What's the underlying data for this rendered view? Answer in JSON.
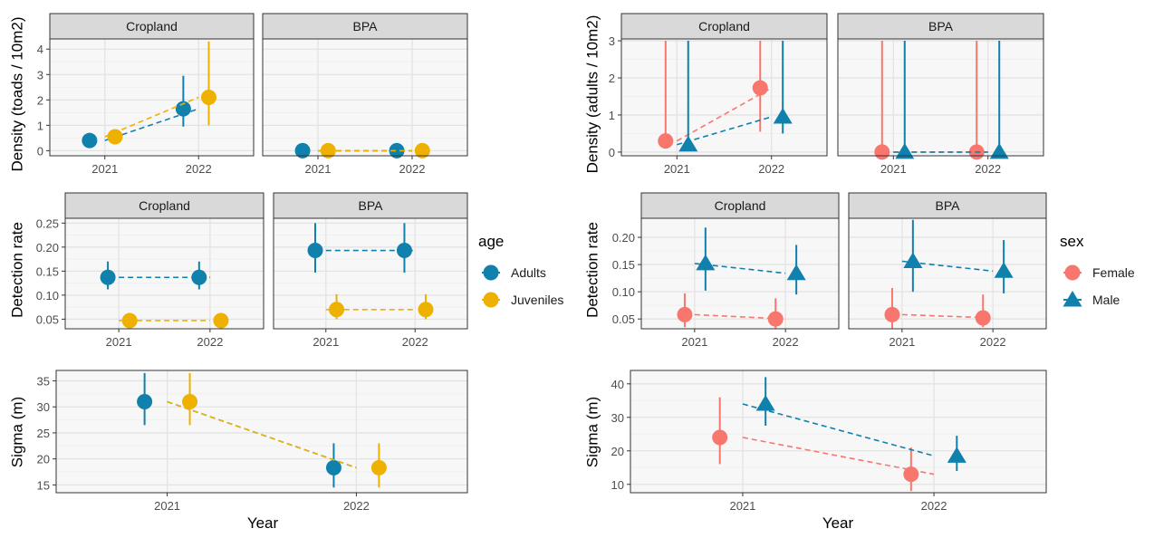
{
  "colors": {
    "adults": "#1080AD",
    "juveniles": "#EFB100",
    "female": "#F8766D",
    "male": "#1080AD",
    "panel_bg": "#F7F7F7",
    "strip_bg": "#D9D9D9",
    "grid_major": "#E3E3E3",
    "grid_minor": "#EFEFEF"
  },
  "chart_data": [
    {
      "id": "age_density",
      "type": "scatter",
      "group": "age",
      "ylabel": "Density (toads / 10m2)",
      "ylim": [
        -0.2,
        4.4
      ],
      "yticks": [
        0,
        1,
        2,
        3,
        4
      ],
      "yticklabels": [
        "0",
        "1",
        "2",
        "3",
        "4"
      ],
      "xticks": [
        "2021",
        "2022"
      ],
      "facets": [
        {
          "label": "Cropland",
          "series": [
            {
              "name": "Adults",
              "shape": "circle",
              "points": [
                {
                  "x": "2021",
                  "y": 0.4,
                  "lo": 0.38,
                  "hi": 0.42
                },
                {
                  "x": "2022",
                  "y": 1.65,
                  "lo": 0.95,
                  "hi": 2.95
                }
              ]
            },
            {
              "name": "Juveniles",
              "shape": "circle",
              "points": [
                {
                  "x": "2021",
                  "y": 0.55,
                  "lo": 0.4,
                  "hi": 0.75
                },
                {
                  "x": "2022",
                  "y": 2.1,
                  "lo": 1.0,
                  "hi": 4.3
                }
              ]
            }
          ]
        },
        {
          "label": "BPA",
          "series": [
            {
              "name": "Adults",
              "shape": "circle",
              "points": [
                {
                  "x": "2021",
                  "y": 0,
                  "lo": 0,
                  "hi": 0
                },
                {
                  "x": "2022",
                  "y": 0,
                  "lo": 0,
                  "hi": 0
                }
              ]
            },
            {
              "name": "Juveniles",
              "shape": "circle",
              "points": [
                {
                  "x": "2021",
                  "y": 0,
                  "lo": 0,
                  "hi": 0
                },
                {
                  "x": "2022",
                  "y": 0,
                  "lo": 0,
                  "hi": 0
                }
              ]
            }
          ]
        }
      ]
    },
    {
      "id": "age_detection",
      "type": "scatter",
      "group": "age",
      "ylabel": "Detection rate",
      "ylim": [
        0.03,
        0.26
      ],
      "yticks": [
        0.05,
        0.1,
        0.15,
        0.2,
        0.25
      ],
      "yticklabels": [
        "0.05",
        "0.10",
        "0.15",
        "0.20",
        "0.25"
      ],
      "xticks": [
        "2021",
        "2022"
      ],
      "facets": [
        {
          "label": "Cropland",
          "series": [
            {
              "name": "Adults",
              "shape": "circle",
              "points": [
                {
                  "x": "2021",
                  "y": 0.137,
                  "lo": 0.112,
                  "hi": 0.17
                },
                {
                  "x": "2022",
                  "y": 0.137,
                  "lo": 0.112,
                  "hi": 0.17
                }
              ]
            },
            {
              "name": "Juveniles",
              "shape": "circle",
              "points": [
                {
                  "x": "2021",
                  "y": 0.047,
                  "lo": 0.036,
                  "hi": 0.063
                },
                {
                  "x": "2022",
                  "y": 0.047,
                  "lo": 0.036,
                  "hi": 0.063
                }
              ]
            }
          ]
        },
        {
          "label": "BPA",
          "series": [
            {
              "name": "Adults",
              "shape": "circle",
              "points": [
                {
                  "x": "2021",
                  "y": 0.193,
                  "lo": 0.147,
                  "hi": 0.25
                },
                {
                  "x": "2022",
                  "y": 0.193,
                  "lo": 0.147,
                  "hi": 0.25
                }
              ]
            },
            {
              "name": "Juveniles",
              "shape": "circle",
              "points": [
                {
                  "x": "2021",
                  "y": 0.07,
                  "lo": 0.05,
                  "hi": 0.102
                },
                {
                  "x": "2022",
                  "y": 0.07,
                  "lo": 0.05,
                  "hi": 0.102
                }
              ]
            }
          ]
        }
      ]
    },
    {
      "id": "age_sigma",
      "type": "scatter",
      "group": "age",
      "ylabel": "Sigma (m)",
      "xlabel": "Year",
      "ylim": [
        13.5,
        37
      ],
      "yticks": [
        15,
        20,
        25,
        30,
        35
      ],
      "yticklabels": [
        "15",
        "20",
        "25",
        "30",
        "35"
      ],
      "xticks": [
        "2021",
        "2022"
      ],
      "facets": [
        {
          "label": "",
          "series": [
            {
              "name": "Adults",
              "shape": "circle",
              "points": [
                {
                  "x": "2021",
                  "y": 31,
                  "lo": 26.5,
                  "hi": 36.5
                },
                {
                  "x": "2022",
                  "y": 18.3,
                  "lo": 14.5,
                  "hi": 23
                }
              ]
            },
            {
              "name": "Juveniles",
              "shape": "circle",
              "points": [
                {
                  "x": "2021",
                  "y": 31,
                  "lo": 26.5,
                  "hi": 36.5
                },
                {
                  "x": "2022",
                  "y": 18.3,
                  "lo": 14.5,
                  "hi": 23
                }
              ]
            }
          ]
        }
      ]
    },
    {
      "id": "sex_density",
      "type": "scatter",
      "group": "sex",
      "ylabel": "Density (adults / 10m2)",
      "ylim": [
        -0.1,
        3.05
      ],
      "yticks": [
        0,
        1,
        2,
        3
      ],
      "yticklabels": [
        "0",
        "1",
        "2",
        "3"
      ],
      "xticks": [
        "2021",
        "2022"
      ],
      "facets": [
        {
          "label": "Cropland",
          "series": [
            {
              "name": "Female",
              "shape": "circle",
              "points": [
                {
                  "x": "2021",
                  "y": 0.3,
                  "lo": 0.12,
                  "hi": 3.0
                },
                {
                  "x": "2022",
                  "y": 1.73,
                  "lo": 0.55,
                  "hi": 3.0
                }
              ]
            },
            {
              "name": "Male",
              "shape": "triangle",
              "points": [
                {
                  "x": "2021",
                  "y": 0.2,
                  "lo": 0.05,
                  "hi": 3.0
                },
                {
                  "x": "2022",
                  "y": 0.95,
                  "lo": 0.5,
                  "hi": 3.0
                }
              ]
            }
          ]
        },
        {
          "label": "BPA",
          "series": [
            {
              "name": "Female",
              "shape": "circle",
              "points": [
                {
                  "x": "2021",
                  "y": 0,
                  "lo": 0,
                  "hi": 3.0
                },
                {
                  "x": "2022",
                  "y": 0,
                  "lo": 0,
                  "hi": 3.0
                }
              ]
            },
            {
              "name": "Male",
              "shape": "triangle",
              "points": [
                {
                  "x": "2021",
                  "y": 0,
                  "lo": 0,
                  "hi": 3.0
                },
                {
                  "x": "2022",
                  "y": 0,
                  "lo": 0,
                  "hi": 3.0
                }
              ]
            }
          ]
        }
      ]
    },
    {
      "id": "sex_detection",
      "type": "scatter",
      "group": "sex",
      "ylabel": "Detection rate",
      "ylim": [
        0.032,
        0.235
      ],
      "yticks": [
        0.05,
        0.1,
        0.15,
        0.2
      ],
      "yticklabels": [
        "0.05",
        "0.10",
        "0.15",
        "0.20"
      ],
      "xticks": [
        "2021",
        "2022"
      ],
      "facets": [
        {
          "label": "Cropland",
          "series": [
            {
              "name": "Female",
              "shape": "circle",
              "points": [
                {
                  "x": "2021",
                  "y": 0.058,
                  "lo": 0.035,
                  "hi": 0.097
                },
                {
                  "x": "2022",
                  "y": 0.05,
                  "lo": 0.032,
                  "hi": 0.088
                }
              ]
            },
            {
              "name": "Male",
              "shape": "triangle",
              "points": [
                {
                  "x": "2021",
                  "y": 0.152,
                  "lo": 0.102,
                  "hi": 0.218
                },
                {
                  "x": "2022",
                  "y": 0.134,
                  "lo": 0.095,
                  "hi": 0.186
                }
              ]
            }
          ]
        },
        {
          "label": "BPA",
          "series": [
            {
              "name": "Female",
              "shape": "circle",
              "points": [
                {
                  "x": "2021",
                  "y": 0.058,
                  "lo": 0.033,
                  "hi": 0.107
                },
                {
                  "x": "2022",
                  "y": 0.052,
                  "lo": 0.035,
                  "hi": 0.095
                }
              ]
            },
            {
              "name": "Male",
              "shape": "triangle",
              "points": [
                {
                  "x": "2021",
                  "y": 0.156,
                  "lo": 0.1,
                  "hi": 0.232
                },
                {
                  "x": "2022",
                  "y": 0.138,
                  "lo": 0.097,
                  "hi": 0.195
                }
              ]
            }
          ]
        }
      ]
    },
    {
      "id": "sex_sigma",
      "type": "scatter",
      "group": "sex",
      "ylabel": "Sigma (m)",
      "xlabel": "Year",
      "ylim": [
        7.5,
        44
      ],
      "yticks": [
        10,
        20,
        30,
        40
      ],
      "yticklabels": [
        "10",
        "20",
        "30",
        "40"
      ],
      "xticks": [
        "2021",
        "2022"
      ],
      "facets": [
        {
          "label": "",
          "series": [
            {
              "name": "Female",
              "shape": "circle",
              "points": [
                {
                  "x": "2021",
                  "y": 24,
                  "lo": 16,
                  "hi": 36
                },
                {
                  "x": "2022",
                  "y": 13,
                  "lo": 8,
                  "hi": 21
                }
              ]
            },
            {
              "name": "Male",
              "shape": "triangle",
              "points": [
                {
                  "x": "2021",
                  "y": 34,
                  "lo": 27.5,
                  "hi": 42
                },
                {
                  "x": "2022",
                  "y": 18.5,
                  "lo": 14,
                  "hi": 24.5
                }
              ]
            }
          ]
        }
      ]
    }
  ],
  "legends": [
    {
      "group": "age",
      "title": "age",
      "items": [
        {
          "name": "Adults",
          "shape": "circle"
        },
        {
          "name": "Juveniles",
          "shape": "circle"
        }
      ]
    },
    {
      "group": "sex",
      "title": "sex",
      "items": [
        {
          "name": "Female",
          "shape": "circle"
        },
        {
          "name": "Male",
          "shape": "triangle"
        }
      ]
    }
  ]
}
